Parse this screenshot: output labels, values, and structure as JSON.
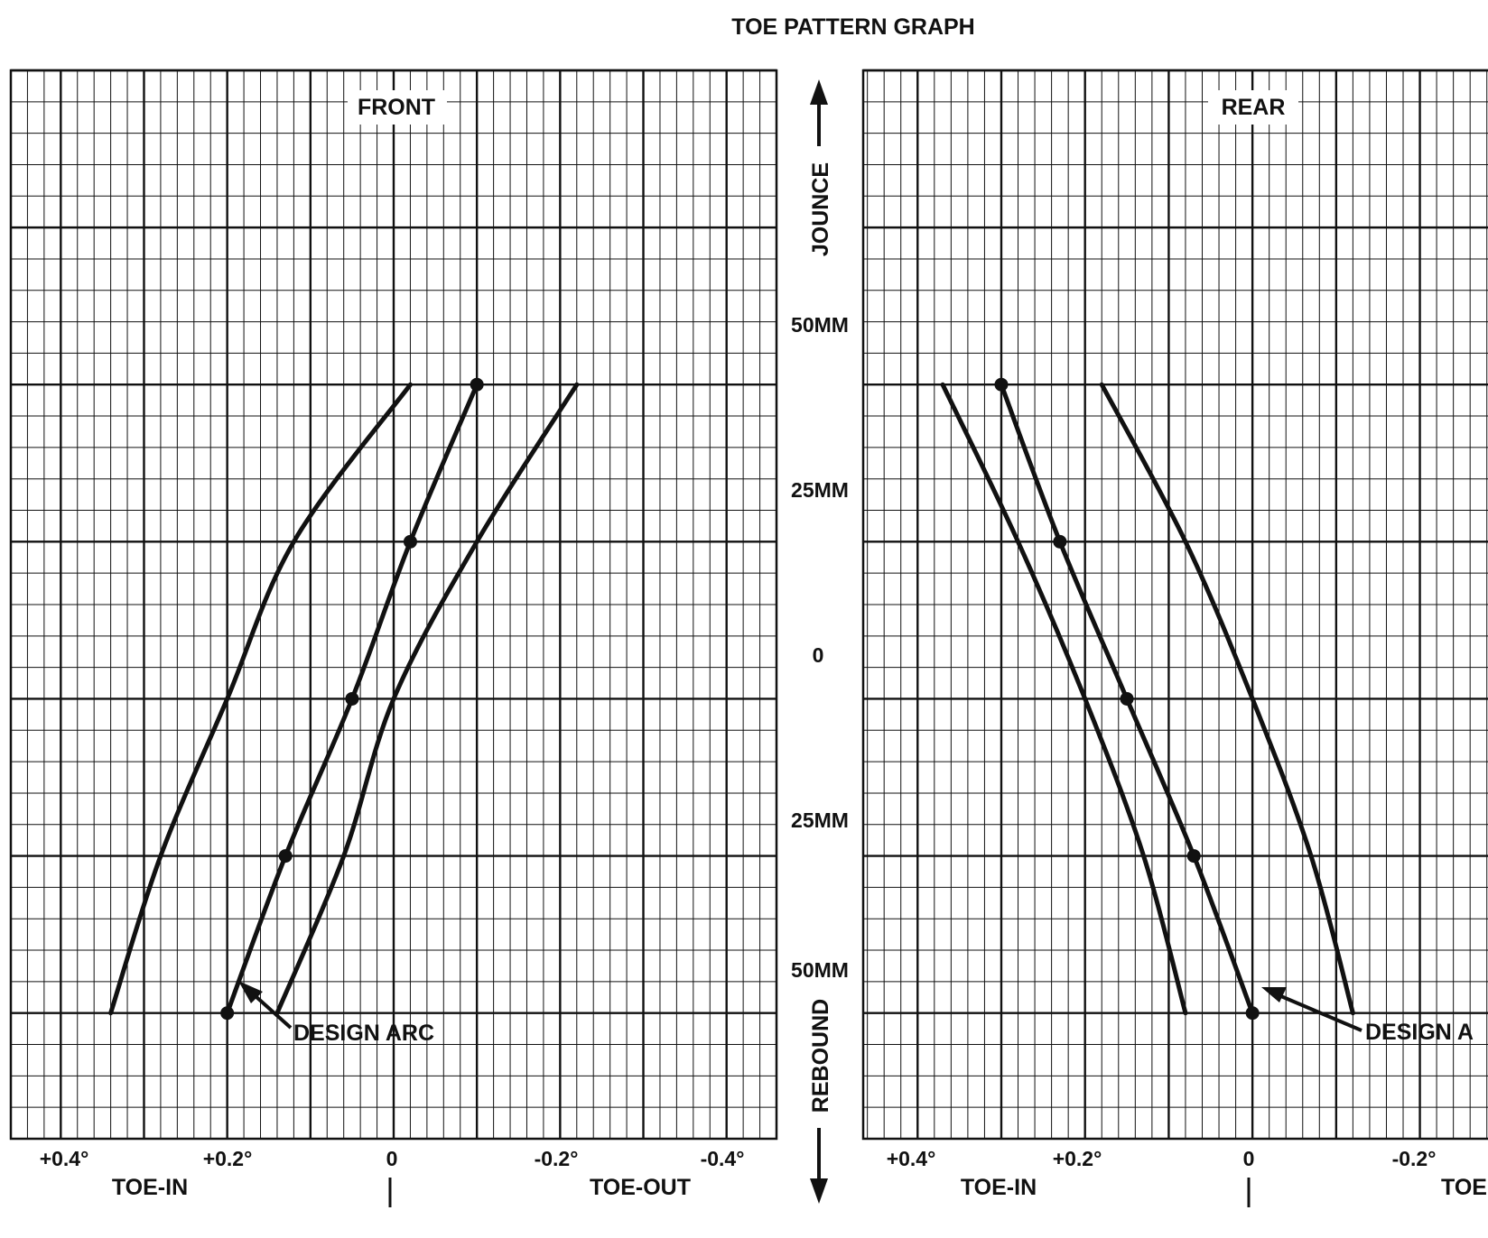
{
  "figure_title": "TOE PATTERN GRAPH",
  "center_axis": {
    "jounce_label": "JOUNCE",
    "rebound_label": "REBOUND",
    "ticks": [
      "50MM",
      "25MM",
      "0",
      "25MM",
      "50MM"
    ]
  },
  "colors": {
    "ink": "#111111",
    "paper": "#ffffff"
  },
  "chart_data": [
    {
      "type": "line",
      "panel": "front",
      "title": "FRONT",
      "x_tick_labels": [
        "+0.4°",
        "+0.2°",
        "0",
        "-0.2°",
        "-0.4°"
      ],
      "x_tick_values": [
        0.4,
        0.2,
        0,
        -0.2,
        -0.4
      ],
      "xlim": [
        0.46,
        -0.46
      ],
      "ylim": [
        -70,
        100
      ],
      "x_side_labels": {
        "left": "TOE-IN",
        "right": "TOE-OUT"
      },
      "grid": true,
      "annotation": "DESIGN ARC",
      "series": [
        {
          "role": "upper-limit",
          "markers": false,
          "points": [
            [
              0.34,
              -50
            ],
            [
              0.28,
              -25
            ],
            [
              0.2,
              0
            ],
            [
              0.12,
              25
            ],
            [
              -0.02,
              50
            ]
          ]
        },
        {
          "role": "design",
          "markers": true,
          "points": [
            [
              0.2,
              -50
            ],
            [
              0.13,
              -25
            ],
            [
              0.05,
              0
            ],
            [
              -0.02,
              25
            ],
            [
              -0.1,
              50
            ]
          ]
        },
        {
          "role": "lower-limit",
          "markers": false,
          "points": [
            [
              0.14,
              -50
            ],
            [
              0.06,
              -25
            ],
            [
              0,
              0
            ],
            [
              -0.1,
              25
            ],
            [
              -0.22,
              50
            ]
          ]
        }
      ]
    },
    {
      "type": "line",
      "panel": "rear",
      "title": "REAR",
      "x_tick_labels": [
        "+0.4°",
        "+0.2°",
        "0",
        "-0.2°"
      ],
      "x_tick_values": [
        0.4,
        0.2,
        0,
        -0.2
      ],
      "xlim": [
        0.465,
        -0.29
      ],
      "ylim": [
        -70,
        100
      ],
      "x_side_labels": {
        "left": "TOE-IN",
        "right": "TOE"
      },
      "grid": true,
      "annotation": "DESIGN A",
      "series": [
        {
          "role": "upper-limit",
          "markers": false,
          "points": [
            [
              0.08,
              -50
            ],
            [
              0.13,
              -25
            ],
            [
              0.2,
              0
            ],
            [
              0.28,
              25
            ],
            [
              0.37,
              50
            ]
          ]
        },
        {
          "role": "design",
          "markers": true,
          "points": [
            [
              0,
              -50
            ],
            [
              0.07,
              -25
            ],
            [
              0.15,
              0
            ],
            [
              0.23,
              25
            ],
            [
              0.3,
              50
            ]
          ]
        },
        {
          "role": "lower-limit",
          "markers": false,
          "points": [
            [
              -0.12,
              -50
            ],
            [
              -0.07,
              -25
            ],
            [
              0,
              0
            ],
            [
              0.08,
              25
            ],
            [
              0.18,
              50
            ]
          ]
        }
      ]
    }
  ]
}
